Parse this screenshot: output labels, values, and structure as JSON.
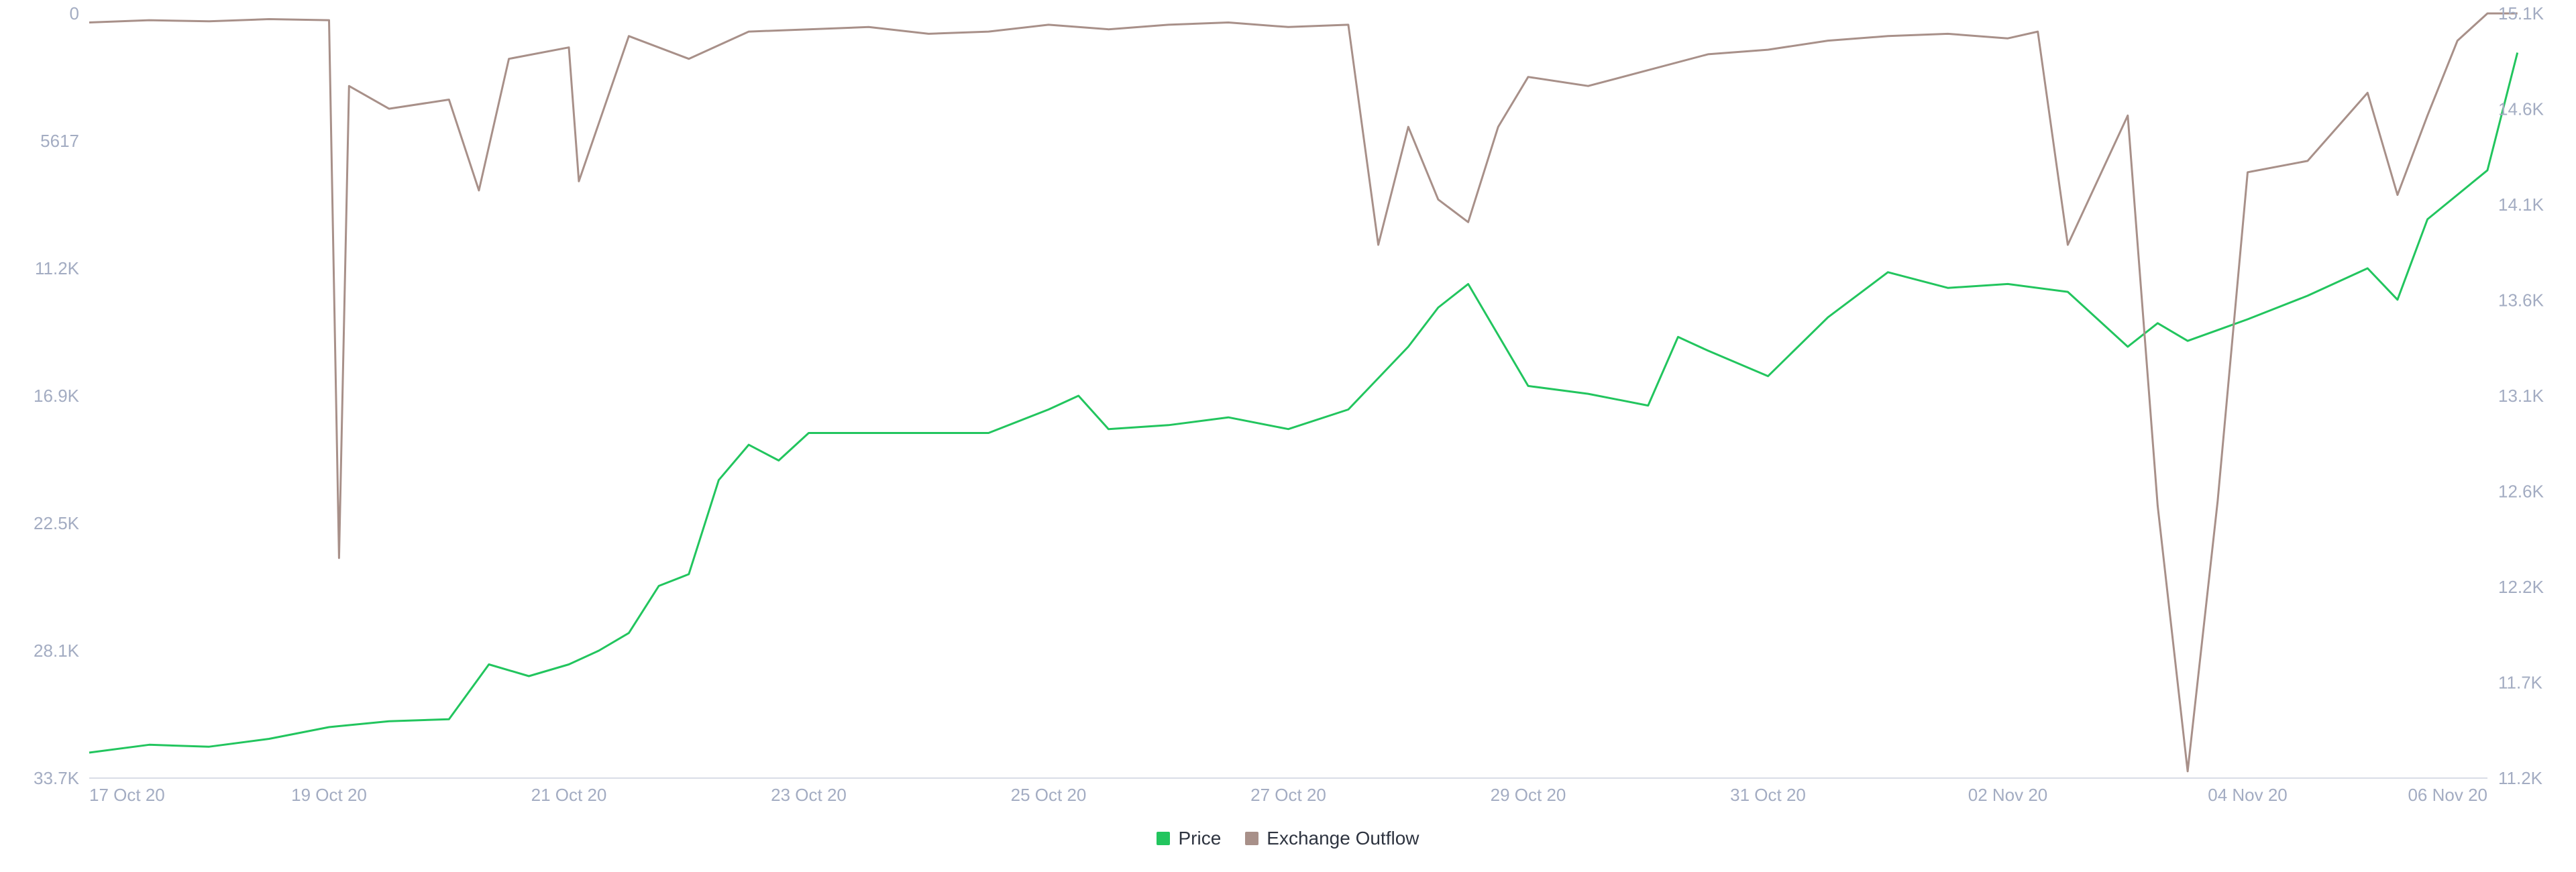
{
  "chart_data": {
    "type": "line",
    "x_range": [
      "2020-10-17",
      "2020-11-06"
    ],
    "x_ticks": [
      "17 Oct 20",
      "19 Oct 20",
      "21 Oct 20",
      "23 Oct 20",
      "25 Oct 20",
      "27 Oct 20",
      "29 Oct 20",
      "31 Oct 20",
      "02 Nov 20",
      "04 Nov 20",
      "06 Nov 20"
    ],
    "left_axis": {
      "ticks": [
        "0",
        "5617",
        "11.2K",
        "16.9K",
        "22.5K",
        "28.1K",
        "33.7K"
      ],
      "ylim": [
        0,
        33700
      ],
      "inverted": true
    },
    "right_axis": {
      "ticks": [
        "15.1K",
        "14.6K",
        "14.1K",
        "13.6K",
        "13.1K",
        "12.6K",
        "12.2K",
        "11.7K",
        "11.2K"
      ],
      "ylim": [
        11200,
        15100
      ]
    },
    "legend_position": "bottom-center",
    "grid": false,
    "series": [
      {
        "name": "Price",
        "axis": "right",
        "color": "#22c55e",
        "points": [
          [
            "2020-10-17 00:00",
            11330
          ],
          [
            "2020-10-17 12:00",
            11370
          ],
          [
            "2020-10-18 00:00",
            11360
          ],
          [
            "2020-10-18 12:00",
            11400
          ],
          [
            "2020-10-19 00:00",
            11460
          ],
          [
            "2020-10-19 12:00",
            11490
          ],
          [
            "2020-10-20 00:00",
            11500
          ],
          [
            "2020-10-20 08:00",
            11780
          ],
          [
            "2020-10-20 16:00",
            11720
          ],
          [
            "2020-10-21 00:00",
            11780
          ],
          [
            "2020-10-21 06:00",
            11850
          ],
          [
            "2020-10-21 12:00",
            11940
          ],
          [
            "2020-10-21 18:00",
            12180
          ],
          [
            "2020-10-22 00:00",
            12240
          ],
          [
            "2020-10-22 06:00",
            12720
          ],
          [
            "2020-10-22 12:00",
            12900
          ],
          [
            "2020-10-22 18:00",
            12820
          ],
          [
            "2020-10-23 00:00",
            12960
          ],
          [
            "2020-10-23 12:00",
            12960
          ],
          [
            "2020-10-24 00:00",
            12960
          ],
          [
            "2020-10-24 12:00",
            12960
          ],
          [
            "2020-10-25 00:00",
            13080
          ],
          [
            "2020-10-25 06:00",
            13150
          ],
          [
            "2020-10-25 12:00",
            12980
          ],
          [
            "2020-10-26 00:00",
            13000
          ],
          [
            "2020-10-26 12:00",
            13040
          ],
          [
            "2020-10-27 00:00",
            12980
          ],
          [
            "2020-10-27 12:00",
            13080
          ],
          [
            "2020-10-28 00:00",
            13400
          ],
          [
            "2020-10-28 06:00",
            13600
          ],
          [
            "2020-10-28 12:00",
            13720
          ],
          [
            "2020-10-29 00:00",
            13200
          ],
          [
            "2020-10-29 12:00",
            13160
          ],
          [
            "2020-10-30 00:00",
            13100
          ],
          [
            "2020-10-30 06:00",
            13450
          ],
          [
            "2020-10-30 12:00",
            13380
          ],
          [
            "2020-10-31 00:00",
            13250
          ],
          [
            "2020-10-31 12:00",
            13550
          ],
          [
            "2020-11-01 00:00",
            13780
          ],
          [
            "2020-11-01 12:00",
            13700
          ],
          [
            "2020-11-02 00:00",
            13720
          ],
          [
            "2020-11-02 12:00",
            13680
          ],
          [
            "2020-11-03 00:00",
            13400
          ],
          [
            "2020-11-03 06:00",
            13520
          ],
          [
            "2020-11-03 12:00",
            13430
          ],
          [
            "2020-11-04 00:00",
            13540
          ],
          [
            "2020-11-04 12:00",
            13660
          ],
          [
            "2020-11-05 00:00",
            13800
          ],
          [
            "2020-11-05 06:00",
            13640
          ],
          [
            "2020-11-05 12:00",
            14050
          ],
          [
            "2020-11-06 00:00",
            14300
          ],
          [
            "2020-11-06 06:00",
            14900
          ]
        ]
      },
      {
        "name": "Exchange Outflow",
        "axis": "left",
        "color": "#a89089",
        "points": [
          [
            "2020-10-17 00:00",
            400
          ],
          [
            "2020-10-17 12:00",
            300
          ],
          [
            "2020-10-18 00:00",
            350
          ],
          [
            "2020-10-18 12:00",
            250
          ],
          [
            "2020-10-19 00:00",
            300
          ],
          [
            "2020-10-19 02:00",
            24000
          ],
          [
            "2020-10-19 04:00",
            3200
          ],
          [
            "2020-10-19 12:00",
            4200
          ],
          [
            "2020-10-20 00:00",
            3800
          ],
          [
            "2020-10-20 06:00",
            7800
          ],
          [
            "2020-10-20 12:00",
            2000
          ],
          [
            "2020-10-21 00:00",
            1500
          ],
          [
            "2020-10-21 02:00",
            7400
          ],
          [
            "2020-10-21 12:00",
            1000
          ],
          [
            "2020-10-22 00:00",
            2000
          ],
          [
            "2020-10-22 12:00",
            800
          ],
          [
            "2020-10-23 00:00",
            700
          ],
          [
            "2020-10-23 12:00",
            600
          ],
          [
            "2020-10-24 00:00",
            900
          ],
          [
            "2020-10-24 12:00",
            800
          ],
          [
            "2020-10-25 00:00",
            500
          ],
          [
            "2020-10-25 12:00",
            700
          ],
          [
            "2020-10-26 00:00",
            500
          ],
          [
            "2020-10-26 12:00",
            400
          ],
          [
            "2020-10-27 00:00",
            600
          ],
          [
            "2020-10-27 12:00",
            500
          ],
          [
            "2020-10-27 18:00",
            10200
          ],
          [
            "2020-10-28 00:00",
            5000
          ],
          [
            "2020-10-28 06:00",
            8200
          ],
          [
            "2020-10-28 12:00",
            9200
          ],
          [
            "2020-10-28 18:00",
            5000
          ],
          [
            "2020-10-29 00:00",
            2800
          ],
          [
            "2020-10-29 12:00",
            3200
          ],
          [
            "2020-10-30 00:00",
            2500
          ],
          [
            "2020-10-30 12:00",
            1800
          ],
          [
            "2020-10-31 00:00",
            1600
          ],
          [
            "2020-10-31 12:00",
            1200
          ],
          [
            "2020-11-01 00:00",
            1000
          ],
          [
            "2020-11-01 12:00",
            900
          ],
          [
            "2020-11-02 00:00",
            1100
          ],
          [
            "2020-11-02 06:00",
            800
          ],
          [
            "2020-11-02 12:00",
            10200
          ],
          [
            "2020-11-03 00:00",
            4500
          ],
          [
            "2020-11-03 06:00",
            21700
          ],
          [
            "2020-11-03 12:00",
            33400
          ],
          [
            "2020-11-03 18:00",
            21500
          ],
          [
            "2020-11-04 00:00",
            7000
          ],
          [
            "2020-11-04 12:00",
            6500
          ],
          [
            "2020-11-05 00:00",
            3500
          ],
          [
            "2020-11-05 06:00",
            8000
          ],
          [
            "2020-11-05 12:00",
            4500
          ],
          [
            "2020-11-05 18:00",
            1200
          ],
          [
            "2020-11-06 00:00",
            0
          ],
          [
            "2020-11-06 06:00",
            0
          ]
        ]
      }
    ]
  },
  "legend": {
    "price_label": "Price",
    "price_color": "#22c55e",
    "outflow_label": "Exchange Outflow",
    "outflow_color": "#a89089"
  }
}
